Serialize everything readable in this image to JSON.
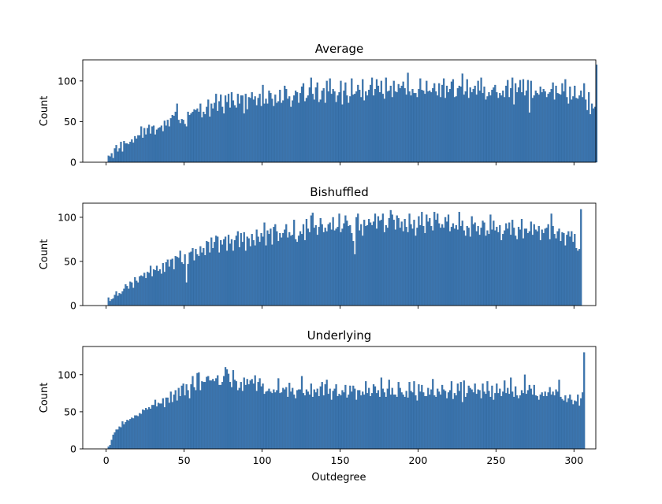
{
  "figure": {
    "xlabel": "Outdegree"
  },
  "chart_data": [
    {
      "type": "bar",
      "title": "Average",
      "xlabel": "",
      "ylabel": "Count",
      "xlim": [
        -15,
        314
      ],
      "ylim": [
        0,
        126
      ],
      "xticks": [
        0,
        50,
        100,
        150,
        200,
        250,
        300
      ],
      "yticks": [
        0,
        50,
        100
      ],
      "bin_width": 1,
      "bar_color": "#3b75af",
      "x_start": 0,
      "values": [
        0,
        8,
        7,
        11,
        5,
        17,
        21,
        13,
        17,
        25,
        13,
        26,
        23,
        23,
        22,
        25,
        28,
        24,
        32,
        29,
        33,
        33,
        44,
        30,
        42,
        34,
        42,
        46,
        35,
        44,
        45,
        34,
        40,
        42,
        43,
        45,
        38,
        51,
        45,
        52,
        44,
        54,
        58,
        57,
        62,
        72,
        52,
        48,
        53,
        52,
        47,
        44,
        62,
        58,
        60,
        62,
        65,
        64,
        66,
        62,
        72,
        55,
        62,
        59,
        68,
        77,
        56,
        72,
        66,
        73,
        84,
        63,
        75,
        83,
        68,
        60,
        82,
        74,
        84,
        67,
        86,
        76,
        70,
        67,
        84,
        72,
        82,
        82,
        60,
        84,
        65,
        80,
        79,
        86,
        77,
        81,
        70,
        79,
        84,
        69,
        95,
        72,
        78,
        72,
        88,
        85,
        78,
        69,
        83,
        73,
        75,
        89,
        73,
        76,
        94,
        90,
        78,
        81,
        68,
        76,
        82,
        88,
        86,
        73,
        85,
        93,
        97,
        75,
        79,
        82,
        92,
        104,
        84,
        77,
        92,
        98,
        74,
        77,
        88,
        91,
        73,
        100,
        87,
        103,
        84,
        90,
        87,
        74,
        82,
        86,
        100,
        71,
        88,
        98,
        82,
        73,
        81,
        103,
        83,
        84,
        87,
        95,
        89,
        80,
        102,
        76,
        87,
        82,
        89,
        95,
        104,
        82,
        90,
        102,
        94,
        86,
        100,
        84,
        78,
        104,
        87,
        88,
        94,
        80,
        100,
        87,
        86,
        96,
        91,
        94,
        99,
        91,
        83,
        110,
        87,
        82,
        90,
        85,
        85,
        80,
        90,
        103,
        89,
        88,
        84,
        100,
        87,
        88,
        86,
        91,
        97,
        87,
        82,
        97,
        80,
        95,
        103,
        79,
        94,
        86,
        90,
        99,
        102,
        80,
        81,
        91,
        94,
        93,
        109,
        83,
        87,
        102,
        79,
        92,
        86,
        90,
        94,
        83,
        100,
        88,
        104,
        85,
        93,
        77,
        81,
        86,
        82,
        89,
        92,
        95,
        86,
        79,
        85,
        82,
        88,
        80,
        94,
        101,
        80,
        91,
        104,
        71,
        97,
        86,
        92,
        101,
        86,
        102,
        82,
        88,
        101,
        61,
        100,
        79,
        82,
        88,
        85,
        83,
        93,
        86,
        90,
        87,
        80,
        84,
        86,
        90,
        98,
        77,
        94,
        85,
        84,
        83,
        97,
        87,
        102,
        80,
        72,
        93,
        77,
        81,
        94,
        79,
        78,
        82,
        88,
        80,
        97,
        77,
        64,
        86,
        59,
        72,
        66,
        68,
        120
      ]
    },
    {
      "type": "bar",
      "title": "Bishuffled",
      "xlabel": "",
      "ylabel": "Count",
      "xlim": [
        -15,
        314
      ],
      "ylim": [
        0,
        116
      ],
      "xticks": [
        0,
        50,
        100,
        150,
        200,
        250,
        300
      ],
      "yticks": [
        0,
        50,
        100
      ],
      "bin_width": 1,
      "bar_color": "#3b75af",
      "x_start": 0,
      "values": [
        0,
        9,
        5,
        7,
        8,
        12,
        16,
        11,
        14,
        13,
        16,
        19,
        24,
        22,
        19,
        27,
        26,
        20,
        32,
        28,
        26,
        33,
        34,
        33,
        37,
        31,
        38,
        37,
        45,
        33,
        41,
        40,
        45,
        39,
        41,
        36,
        48,
        38,
        49,
        52,
        44,
        52,
        53,
        41,
        56,
        55,
        54,
        62,
        49,
        47,
        58,
        26,
        47,
        60,
        61,
        65,
        51,
        64,
        58,
        56,
        67,
        60,
        65,
        57,
        73,
        72,
        60,
        77,
        65,
        72,
        79,
        78,
        60,
        74,
        69,
        75,
        78,
        62,
        80,
        70,
        75,
        62,
        74,
        79,
        84,
        66,
        82,
        72,
        83,
        62,
        78,
        76,
        67,
        81,
        74,
        68,
        86,
        78,
        72,
        82,
        78,
        94,
        68,
        85,
        81,
        87,
        69,
        89,
        92,
        84,
        73,
        82,
        77,
        82,
        86,
        92,
        77,
        83,
        79,
        80,
        97,
        75,
        72,
        79,
        84,
        81,
        92,
        74,
        98,
        87,
        83,
        102,
        105,
        88,
        91,
        80,
        89,
        99,
        92,
        83,
        88,
        84,
        92,
        94,
        86,
        100,
        85,
        87,
        89,
        104,
        83,
        87,
        93,
        102,
        96,
        90,
        91,
        82,
        73,
        58,
        100,
        104,
        85,
        92,
        79,
        97,
        90,
        91,
        98,
        94,
        91,
        95,
        104,
        87,
        101,
        96,
        97,
        104,
        83,
        91,
        88,
        99,
        108,
        103,
        97,
        86,
        102,
        99,
        88,
        95,
        84,
        98,
        89,
        83,
        104,
        92,
        87,
        97,
        79,
        88,
        101,
        91,
        106,
        90,
        82,
        103,
        95,
        99,
        90,
        85,
        106,
        97,
        104,
        93,
        88,
        92,
        88,
        100,
        95,
        103,
        84,
        89,
        93,
        87,
        91,
        86,
        106,
        90,
        96,
        85,
        79,
        90,
        88,
        78,
        101,
        92,
        94,
        84,
        90,
        80,
        88,
        96,
        94,
        79,
        85,
        81,
        103,
        86,
        96,
        85,
        89,
        83,
        91,
        74,
        81,
        85,
        93,
        87,
        94,
        80,
        97,
        88,
        79,
        75,
        89,
        86,
        98,
        76,
        87,
        87,
        82,
        84,
        95,
        80,
        92,
        86,
        84,
        90,
        74,
        86,
        82,
        87,
        88,
        92,
        75,
        104,
        90,
        81,
        76,
        84,
        87,
        73,
        83,
        82,
        68,
        80,
        84,
        78,
        84,
        72,
        81,
        65,
        62,
        64,
        109
      ]
    },
    {
      "type": "bar",
      "title": "Underlying",
      "xlabel": "Outdegree",
      "ylabel": "Count",
      "xlim": [
        -15,
        314
      ],
      "ylim": [
        0,
        138
      ],
      "xticks": [
        0,
        50,
        100,
        150,
        200,
        250,
        300
      ],
      "yticks": [
        0,
        50,
        100
      ],
      "bin_width": 1,
      "bar_color": "#3b75af",
      "x_start": 0,
      "values": [
        0,
        3,
        5,
        12,
        19,
        22,
        26,
        26,
        30,
        29,
        37,
        33,
        36,
        39,
        38,
        40,
        42,
        41,
        45,
        45,
        44,
        48,
        47,
        53,
        52,
        55,
        53,
        56,
        54,
        59,
        59,
        66,
        57,
        62,
        61,
        61,
        68,
        56,
        69,
        69,
        62,
        77,
        63,
        73,
        79,
        65,
        82,
        71,
        85,
        88,
        72,
        87,
        79,
        68,
        87,
        98,
        83,
        79,
        102,
        103,
        79,
        91,
        90,
        90,
        97,
        98,
        92,
        92,
        94,
        91,
        95,
        99,
        86,
        86,
        90,
        98,
        110,
        107,
        101,
        90,
        83,
        106,
        93,
        91,
        79,
        82,
        90,
        78,
        96,
        86,
        94,
        87,
        92,
        94,
        88,
        99,
        78,
        90,
        95,
        84,
        88,
        74,
        77,
        78,
        81,
        77,
        75,
        80,
        76,
        79,
        95,
        75,
        76,
        82,
        80,
        83,
        70,
        89,
        77,
        82,
        73,
        68,
        79,
        80,
        80,
        98,
        75,
        72,
        80,
        77,
        73,
        88,
        70,
        80,
        76,
        81,
        71,
        84,
        90,
        72,
        87,
        93,
        74,
        81,
        66,
        78,
        81,
        87,
        71,
        74,
        72,
        79,
        76,
        86,
        69,
        73,
        85,
        77,
        85,
        81,
        66,
        79,
        79,
        72,
        77,
        73,
        91,
        75,
        82,
        71,
        75,
        87,
        84,
        75,
        79,
        70,
        96,
        81,
        76,
        70,
        81,
        93,
        73,
        82,
        73,
        73,
        70,
        90,
        82,
        76,
        73,
        70,
        78,
        69,
        90,
        78,
        76,
        91,
        72,
        65,
        87,
        77,
        86,
        76,
        71,
        71,
        82,
        73,
        80,
        94,
        72,
        70,
        81,
        77,
        73,
        86,
        80,
        78,
        68,
        76,
        79,
        91,
        67,
        75,
        72,
        88,
        78,
        90,
        63,
        92,
        70,
        75,
        85,
        82,
        80,
        76,
        88,
        74,
        80,
        79,
        68,
        88,
        77,
        74,
        91,
        78,
        70,
        85,
        66,
        75,
        88,
        75,
        81,
        71,
        77,
        92,
        75,
        82,
        74,
        96,
        77,
        70,
        84,
        72,
        68,
        72,
        79,
        75,
        100,
        74,
        79,
        86,
        81,
        73,
        86,
        72,
        71,
        66,
        73,
        76,
        71,
        77,
        71,
        76,
        83,
        73,
        77,
        72,
        80,
        77,
        93,
        70,
        67,
        65,
        72,
        63,
        68,
        73,
        66,
        60,
        65,
        64,
        73,
        58,
        68,
        76,
        130
      ]
    }
  ]
}
